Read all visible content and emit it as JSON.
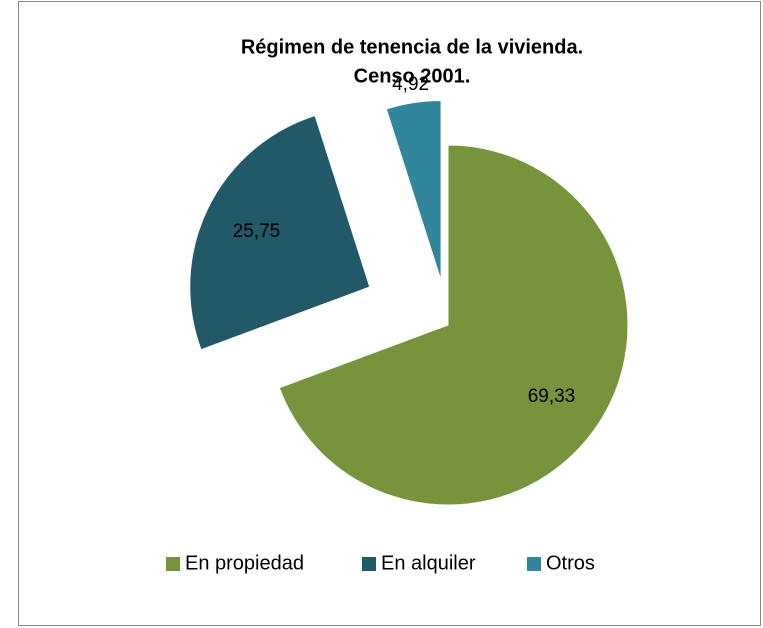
{
  "chart_data": {
    "type": "pie",
    "title": [
      "Régimen de tenencia de la vivienda.",
      "Censo 2001."
    ],
    "categories": [
      "En propiedad",
      "En alquiler",
      "Otros"
    ],
    "values": [
      69.33,
      25.75,
      4.92
    ],
    "value_labels": [
      "69,33",
      "25,75",
      "4,92"
    ],
    "colors": [
      "#77933c",
      "#215968",
      "#31859c"
    ],
    "legend": "bottom"
  }
}
